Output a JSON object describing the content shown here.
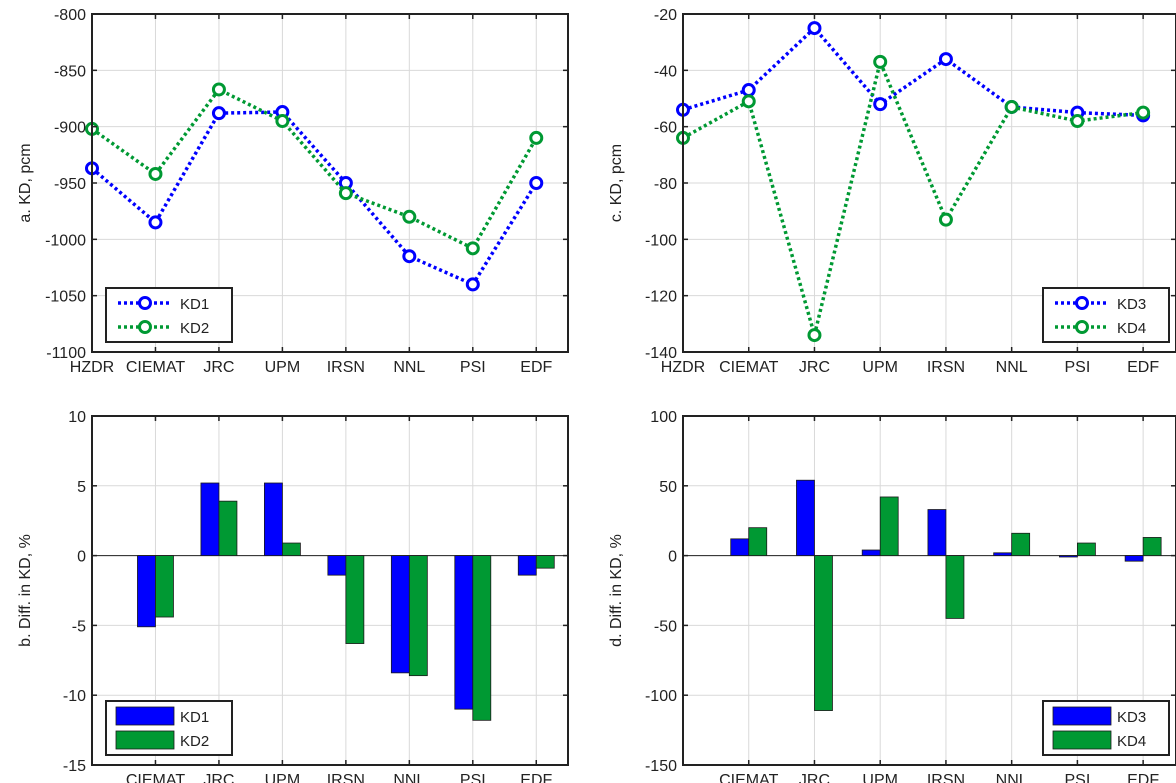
{
  "colors": {
    "kd1": "#0000ff",
    "kd2": "#009933",
    "kd3": "#0000ff",
    "kd4": "#009933",
    "axis": "#222222",
    "grid": "#d9d9d9"
  },
  "chart_data": [
    {
      "id": "a",
      "type": "line",
      "ylabel": "a. KD, pcm",
      "categories": [
        "HZDR",
        "CIEMAT",
        "JRC",
        "UPM",
        "IRSN",
        "NNL",
        "PSI",
        "EDF"
      ],
      "ylim": [
        -1100,
        -800
      ],
      "yticks": [
        -800,
        -850,
        -900,
        -950,
        -1000,
        -1050,
        -1100
      ],
      "grid": true,
      "legend": "bottom-left",
      "series": [
        {
          "name": "KD1",
          "color": "#0000ff",
          "values": [
            -937,
            -985,
            -888,
            -887,
            -950,
            -1015,
            -1040,
            -950
          ]
        },
        {
          "name": "KD2",
          "color": "#009933",
          "values": [
            -902,
            -942,
            -867,
            -895,
            -959,
            -980,
            -1008,
            -910
          ]
        }
      ]
    },
    {
      "id": "c",
      "type": "line",
      "ylabel": "c. KD, pcm",
      "categories": [
        "HZDR",
        "CIEMAT",
        "JRC",
        "UPM",
        "IRSN",
        "NNL",
        "PSI",
        "EDF"
      ],
      "ylim": [
        -140,
        -20
      ],
      "yticks": [
        -20,
        -40,
        -60,
        -80,
        -100,
        -120,
        -140
      ],
      "grid": true,
      "legend": "bottom-right",
      "series": [
        {
          "name": "KD3",
          "color": "#0000ff",
          "values": [
            -54,
            -47,
            -25,
            -52,
            -36,
            -53,
            -55,
            -56
          ]
        },
        {
          "name": "KD4",
          "color": "#009933",
          "values": [
            -64,
            -51,
            -134,
            -37,
            -93,
            -53,
            -58,
            -55
          ]
        }
      ]
    },
    {
      "id": "b",
      "type": "bar",
      "ylabel": "b. Diff. in KD, %",
      "categories": [
        "CIEMAT",
        "JRC",
        "UPM",
        "IRSN",
        "NNL",
        "PSI",
        "EDF"
      ],
      "ylim": [
        -15,
        10
      ],
      "yticks": [
        10,
        5,
        0,
        -5,
        -10,
        -15
      ],
      "grid": true,
      "legend": "bottom-left",
      "series": [
        {
          "name": "KD1",
          "color": "#0000ff",
          "values": [
            -5.1,
            5.2,
            5.2,
            -1.4,
            -8.4,
            -11.0,
            -1.4
          ]
        },
        {
          "name": "KD2",
          "color": "#009933",
          "values": [
            -4.4,
            3.9,
            0.9,
            -6.3,
            -8.6,
            -11.8,
            -0.9
          ]
        }
      ]
    },
    {
      "id": "d",
      "type": "bar",
      "ylabel": "d. Diff. in KD, %",
      "categories": [
        "CIEMAT",
        "JRC",
        "UPM",
        "IRSN",
        "NNL",
        "PSI",
        "EDF"
      ],
      "ylim": [
        -150,
        100
      ],
      "yticks": [
        100,
        50,
        0,
        -50,
        -100,
        -150
      ],
      "grid": true,
      "legend": "bottom-right",
      "series": [
        {
          "name": "KD3",
          "color": "#0000ff",
          "values": [
            12,
            54,
            4,
            33,
            2,
            -1,
            -4
          ]
        },
        {
          "name": "KD4",
          "color": "#009933",
          "values": [
            20,
            -111,
            42,
            -45,
            16,
            9,
            13
          ]
        }
      ]
    }
  ]
}
